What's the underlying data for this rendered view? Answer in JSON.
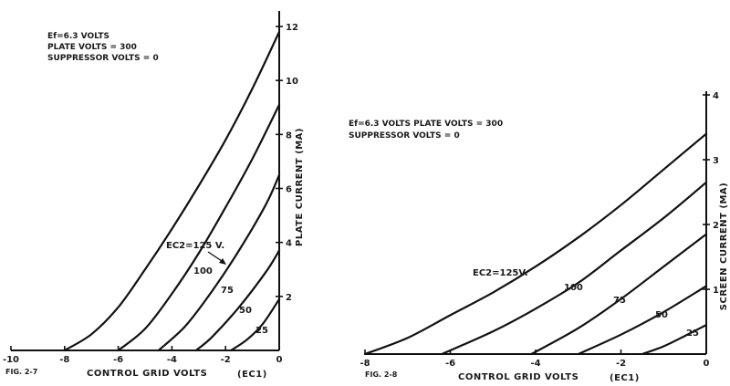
{
  "chart_data": [
    {
      "type": "line",
      "figure_label": "FIG. 2-7",
      "notes": [
        "Ef=6.3 VOLTS",
        "PLATE VOLTS = 300",
        "SUPPRESSOR VOLTS = 0"
      ],
      "xlabel": "CONTROL GRID VOLTS",
      "xlabel_symbol": "EC1",
      "ylabel": "PLATE CURRENT (MA)",
      "xlim": [
        -10,
        0
      ],
      "ylim": [
        0,
        12
      ],
      "x_ticks": [
        "-10",
        "-8",
        "-6",
        "-4",
        "-2",
        "0"
      ],
      "y_ticks": [
        "2",
        "4",
        "6",
        "8",
        "10",
        "12"
      ],
      "parameter_prefix": "EC2=",
      "series": [
        {
          "name": "125 V.",
          "points": [
            [
              -8,
              0
            ],
            [
              -7,
              0.6
            ],
            [
              -6,
              1.6
            ],
            [
              -5,
              3
            ],
            [
              -4,
              4.5
            ],
            [
              -3,
              6.1
            ],
            [
              -2,
              7.8
            ],
            [
              -1,
              9.7
            ],
            [
              0,
              11.8
            ]
          ]
        },
        {
          "name": "100",
          "points": [
            [
              -6,
              0
            ],
            [
              -5,
              0.8
            ],
            [
              -4,
              2.1
            ],
            [
              -3,
              3.6
            ],
            [
              -2,
              5.3
            ],
            [
              -1,
              7.1
            ],
            [
              0,
              9.1
            ]
          ]
        },
        {
          "name": "75",
          "points": [
            [
              -4.5,
              0
            ],
            [
              -3.5,
              0.9
            ],
            [
              -2.5,
              2.2
            ],
            [
              -1.5,
              3.7
            ],
            [
              -0.5,
              5.4
            ],
            [
              0,
              6.5
            ]
          ]
        },
        {
          "name": "50",
          "points": [
            [
              -3.1,
              0
            ],
            [
              -2.5,
              0.5
            ],
            [
              -1.5,
              1.6
            ],
            [
              -0.5,
              2.9
            ],
            [
              0,
              3.7
            ]
          ]
        },
        {
          "name": "25",
          "points": [
            [
              -1.8,
              0
            ],
            [
              -1.2,
              0.4
            ],
            [
              -0.6,
              1
            ],
            [
              0,
              1.9
            ]
          ]
        }
      ]
    },
    {
      "type": "line",
      "figure_label": "FIG. 2-8",
      "notes": [
        "Ef=6.3 VOLTS  PLATE VOLTS = 300",
        "SUPPRESSOR VOLTS = 0"
      ],
      "xlabel": "CONTROL GRID VOLTS",
      "xlabel_symbol": "EC1",
      "ylabel": "SCREEN CURRENT (MA)",
      "xlim": [
        -8,
        0
      ],
      "ylim": [
        0,
        4
      ],
      "x_ticks": [
        "-8",
        "-6",
        "-4",
        "-2",
        "0"
      ],
      "y_ticks": [
        "1",
        "2",
        "3",
        "4"
      ],
      "parameter_prefix": "EC2=",
      "series": [
        {
          "name": "125V.",
          "points": [
            [
              -8,
              0
            ],
            [
              -7,
              0.25
            ],
            [
              -6,
              0.6
            ],
            [
              -5,
              0.95
            ],
            [
              -4,
              1.35
            ],
            [
              -3,
              1.8
            ],
            [
              -2,
              2.3
            ],
            [
              -1,
              2.85
            ],
            [
              0,
              3.4
            ]
          ]
        },
        {
          "name": "100",
          "points": [
            [
              -6.2,
              0
            ],
            [
              -5,
              0.35
            ],
            [
              -4,
              0.7
            ],
            [
              -3,
              1.1
            ],
            [
              -2,
              1.6
            ],
            [
              -1,
              2.1
            ],
            [
              0,
              2.65
            ]
          ]
        },
        {
          "name": "75",
          "points": [
            [
              -4.1,
              0
            ],
            [
              -3,
              0.4
            ],
            [
              -2,
              0.85
            ],
            [
              -1,
              1.35
            ],
            [
              0,
              1.85
            ]
          ]
        },
        {
          "name": "50",
          "points": [
            [
              -3,
              0
            ],
            [
              -2,
              0.3
            ],
            [
              -1,
              0.65
            ],
            [
              0,
              1.05
            ]
          ]
        },
        {
          "name": "25",
          "points": [
            [
              -1.5,
              0
            ],
            [
              -1,
              0.12
            ],
            [
              -0.5,
              0.28
            ],
            [
              0,
              0.45
            ]
          ]
        }
      ]
    }
  ]
}
